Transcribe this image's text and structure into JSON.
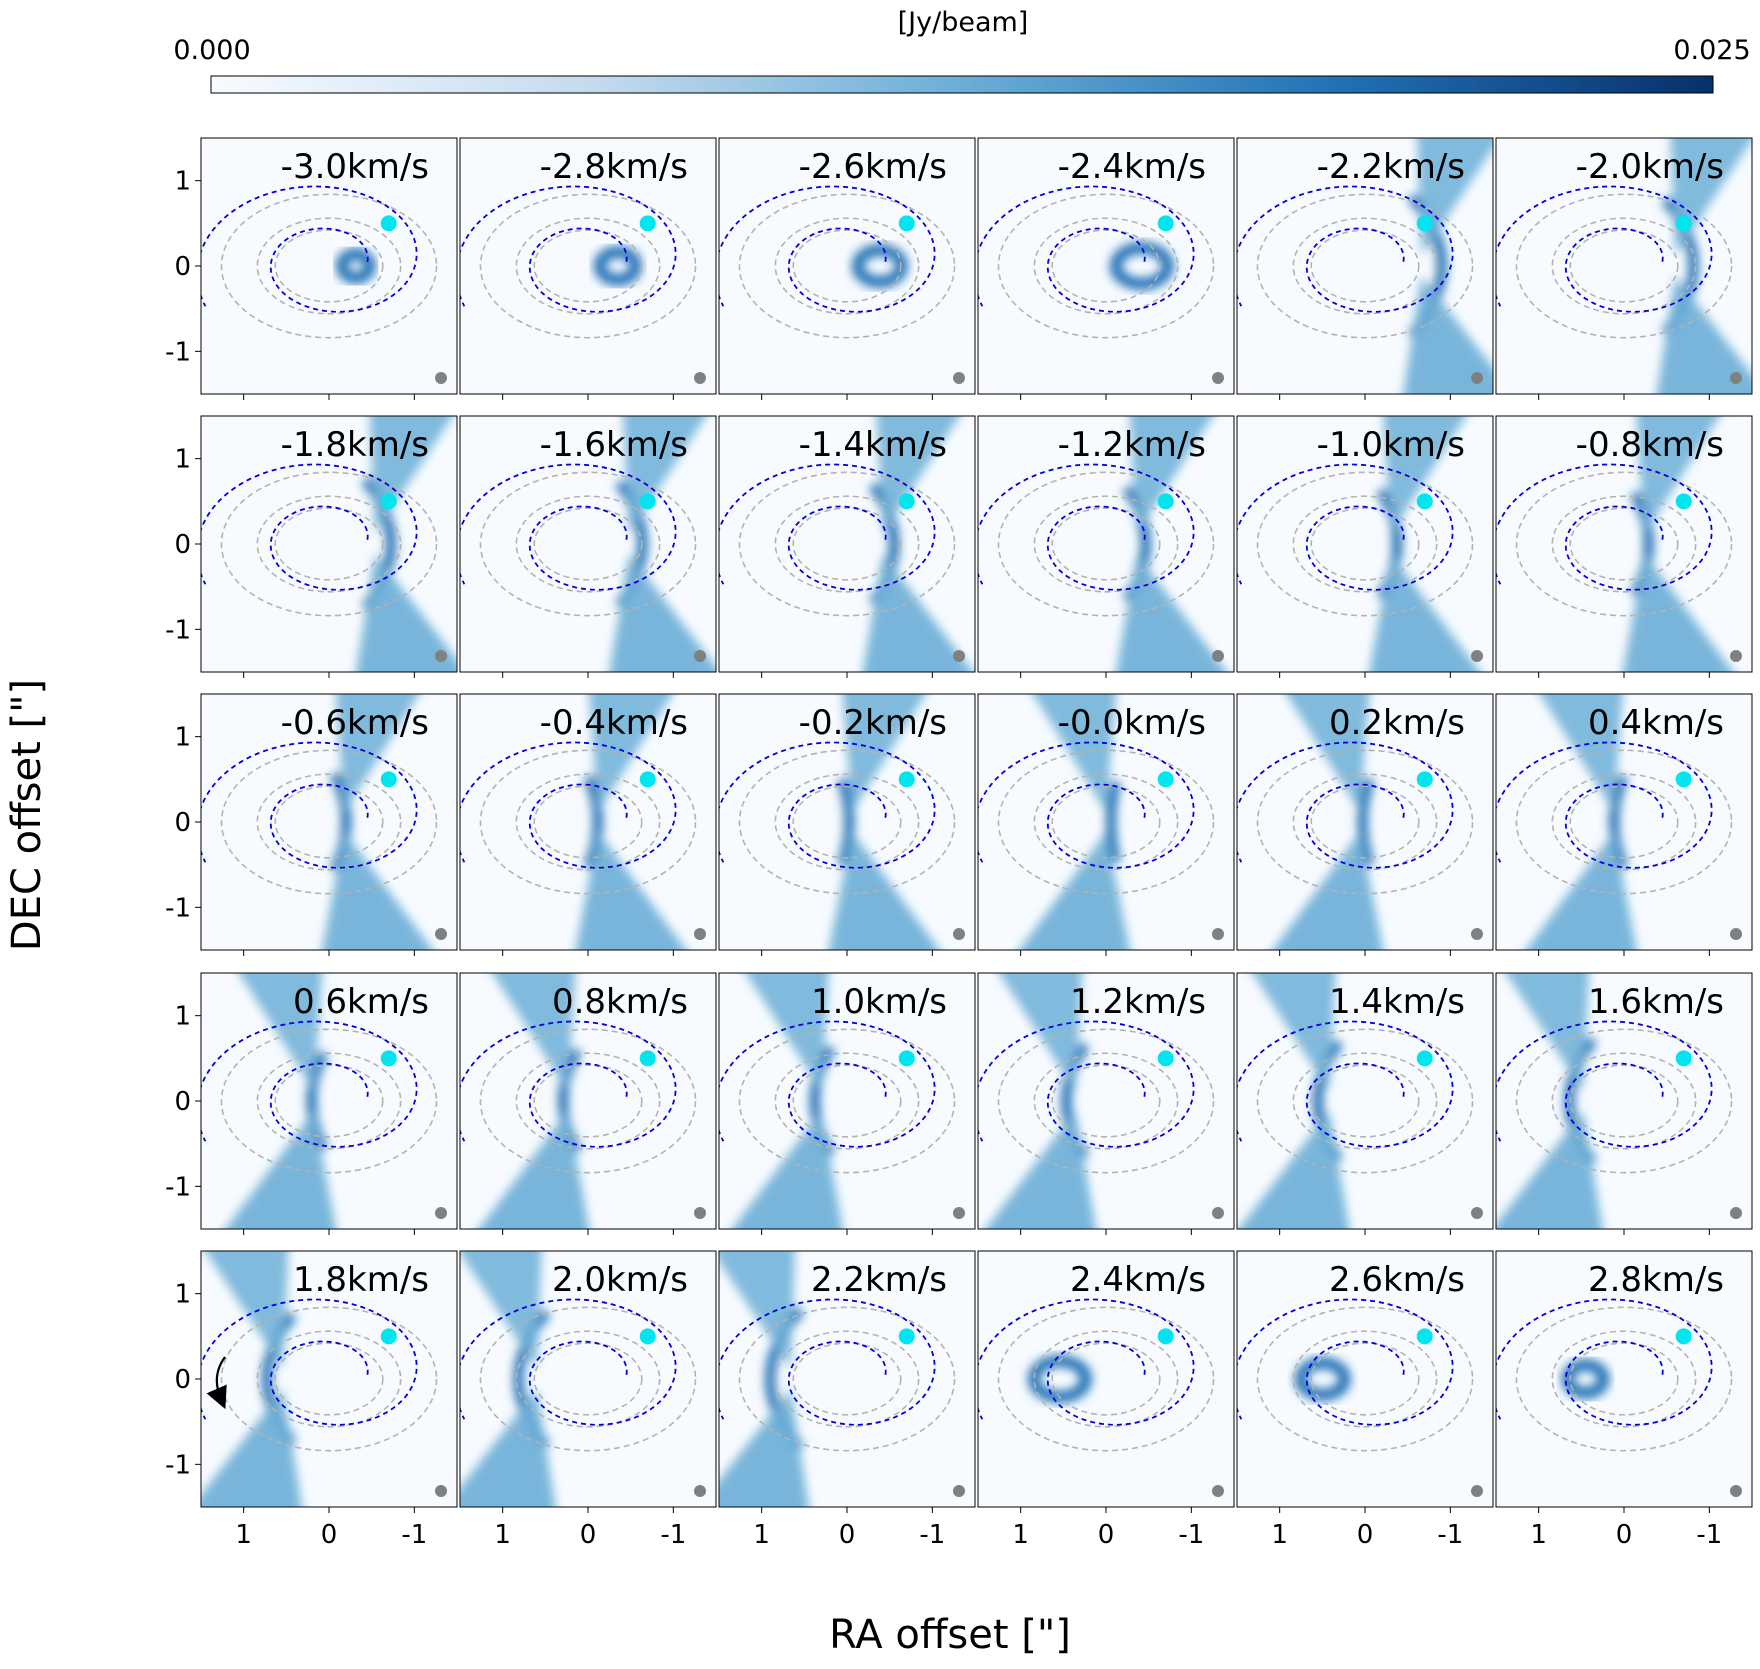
{
  "chart_data": {
    "type": "heatmap",
    "title": "",
    "xlabel": "RA offset [\"]",
    "ylabel": "DEC offset [\"]",
    "colorbar": {
      "label": "[Jy/beam]",
      "min": 0.0,
      "max": 0.025,
      "min_label": "0.000",
      "max_label": "0.025",
      "colors": [
        "#f7fbff",
        "#c6dbef",
        "#6baed6",
        "#2171b5",
        "#08306b"
      ]
    },
    "xlim": [
      1.5,
      -1.5
    ],
    "ylim": [
      -1.5,
      1.5
    ],
    "xticks": [
      1,
      0,
      -1
    ],
    "xtick_labels": [
      "1",
      "0",
      "-1"
    ],
    "yticks": [
      1,
      0,
      -1
    ],
    "ytick_labels": [
      "1",
      "0",
      "-1"
    ],
    "rows": 5,
    "cols": 6,
    "channel_labels": [
      "-3.0km/s",
      "-2.8km/s",
      "-2.6km/s",
      "-2.4km/s",
      "-2.2km/s",
      "-2.0km/s",
      "-1.8km/s",
      "-1.6km/s",
      "-1.4km/s",
      "-1.2km/s",
      "-1.0km/s",
      "-0.8km/s",
      "-0.6km/s",
      "-0.4km/s",
      "-0.2km/s",
      "-0.0km/s",
      "0.2km/s",
      "0.4km/s",
      "0.6km/s",
      "0.8km/s",
      "1.0km/s",
      "1.2km/s",
      "1.4km/s",
      "1.6km/s",
      "1.8km/s",
      "2.0km/s",
      "2.2km/s",
      "2.4km/s",
      "2.6km/s",
      "2.8km/s"
    ],
    "velocities": [
      -3.0,
      -2.8,
      -2.6,
      -2.4,
      -2.2,
      -2.0,
      -1.8,
      -1.6,
      -1.4,
      -1.2,
      -1.0,
      -0.8,
      -0.6,
      -0.4,
      -0.2,
      0.0,
      0.2,
      0.4,
      0.6,
      0.8,
      1.0,
      1.2,
      1.4,
      1.6,
      1.8,
      2.0,
      2.2,
      2.4,
      2.6,
      2.8
    ],
    "planet": {
      "ra": -0.7,
      "dec": 0.5,
      "color": "#00e5ee"
    },
    "ring_radii": [
      0.6,
      0.8,
      1.2
    ],
    "ring_color": "#b3b3b3",
    "spiral_color": "#0000dd",
    "beam_color": "#808080",
    "rotation_arrow_panel": 24
  }
}
